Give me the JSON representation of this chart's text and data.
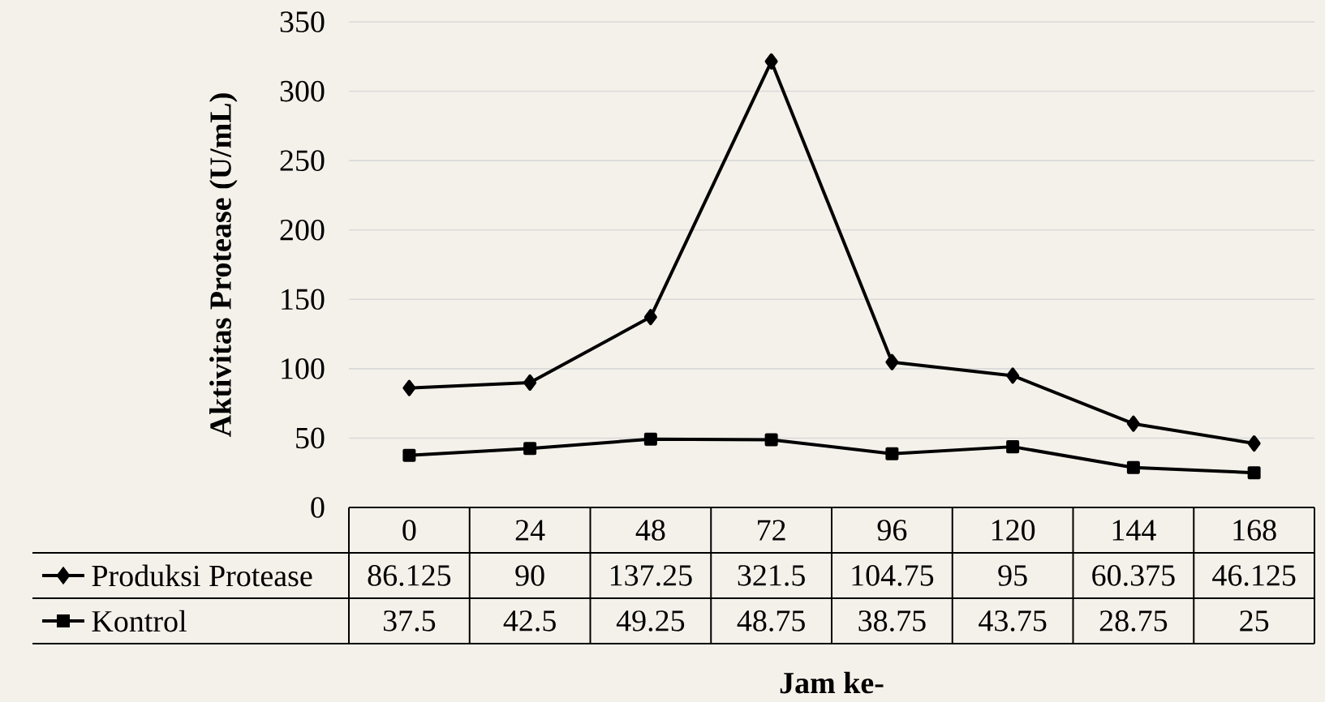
{
  "chart_data": {
    "type": "line",
    "xlabel": "Jam ke-",
    "ylabel": "Aktivitas Protease (U/mL)",
    "categories": [
      "0",
      "24",
      "48",
      "72",
      "96",
      "120",
      "144",
      "168"
    ],
    "series": [
      {
        "name": "Produksi Protease",
        "color": "#000000",
        "marker": "diamond",
        "values": [
          86.125,
          90,
          137.25,
          321.5,
          104.75,
          95,
          60.375,
          46.125
        ]
      },
      {
        "name": "Kontrol",
        "color": "#000000",
        "marker": "square",
        "values": [
          37.5,
          42.5,
          49.25,
          48.75,
          38.75,
          43.75,
          28.75,
          25
        ]
      }
    ],
    "ylim": [
      0,
      350
    ],
    "yticks": [
      0,
      50,
      100,
      150,
      200,
      250,
      300,
      350
    ],
    "grid": "y",
    "legend": "bottom",
    "data_labels": true
  }
}
